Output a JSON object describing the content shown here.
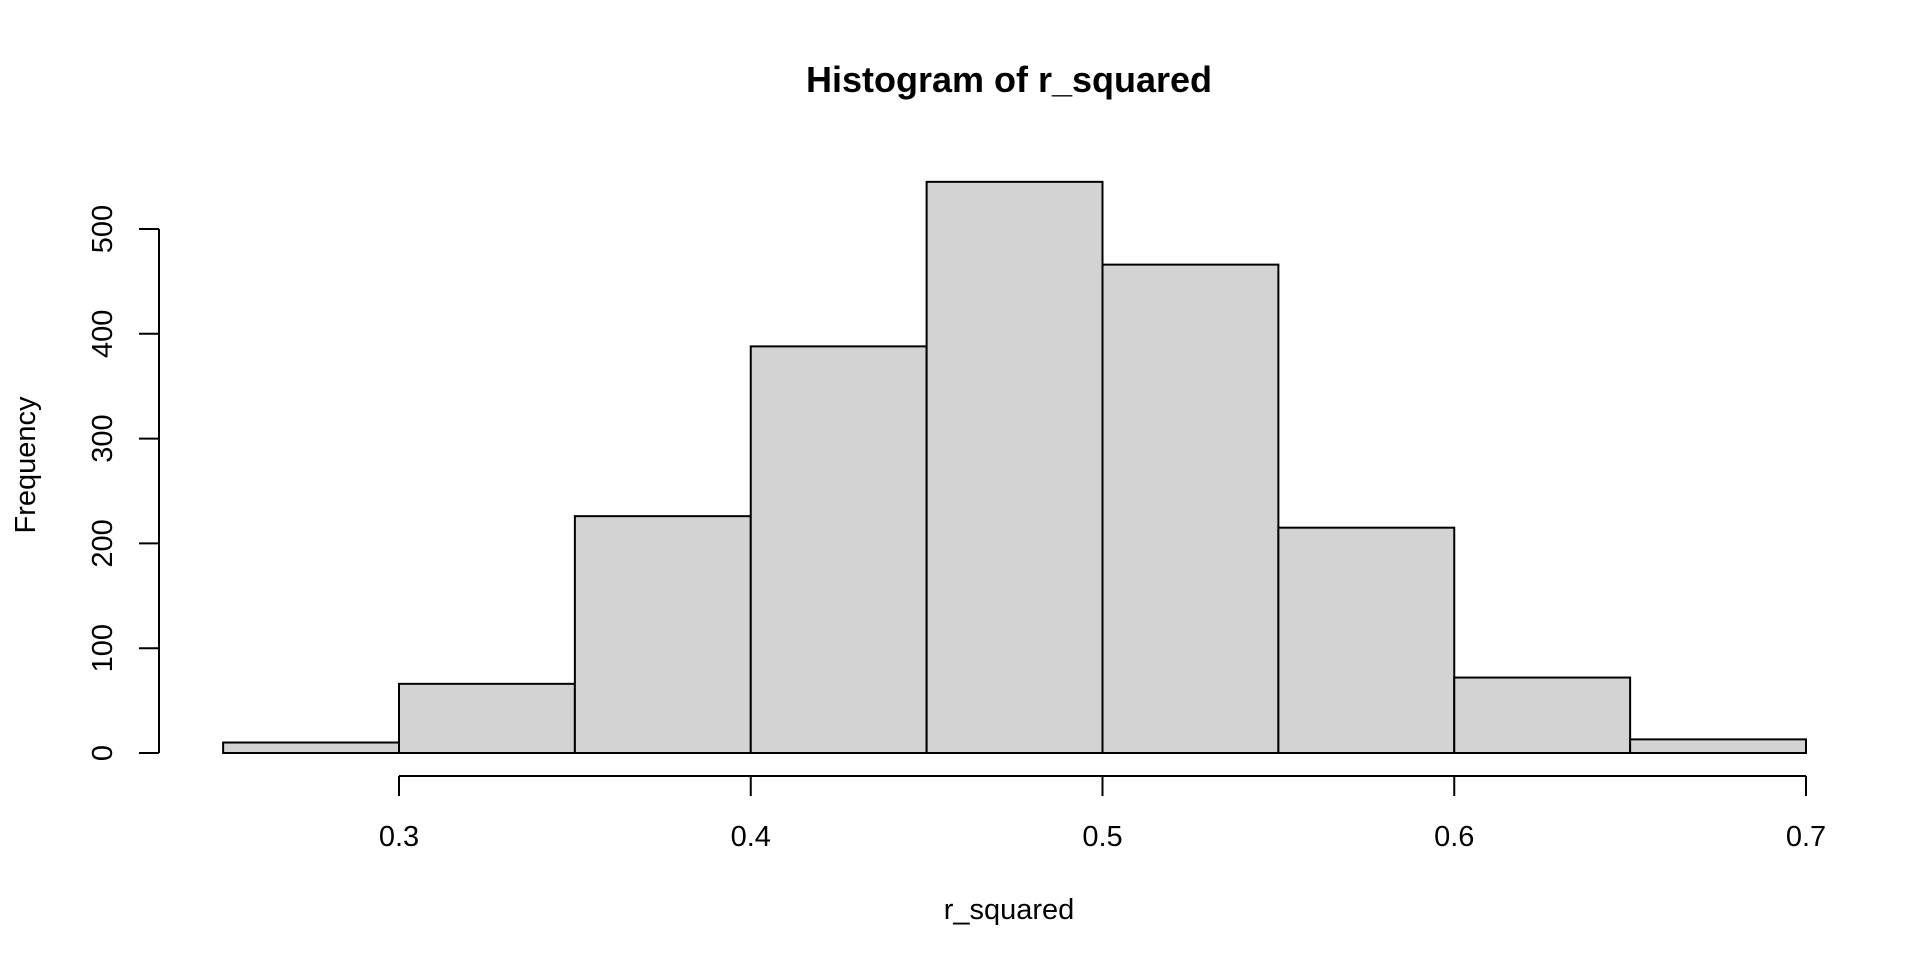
{
  "chart_data": {
    "type": "bar",
    "title": "Histogram of r_squared",
    "xlabel": "r_squared",
    "ylabel": "Frequency",
    "bins": [
      {
        "start": 0.25,
        "end": 0.3,
        "count": 10
      },
      {
        "start": 0.3,
        "end": 0.35,
        "count": 66
      },
      {
        "start": 0.35,
        "end": 0.4,
        "count": 226
      },
      {
        "start": 0.4,
        "end": 0.45,
        "count": 388
      },
      {
        "start": 0.45,
        "end": 0.5,
        "count": 545
      },
      {
        "start": 0.5,
        "end": 0.55,
        "count": 466
      },
      {
        "start": 0.55,
        "end": 0.6,
        "count": 215
      },
      {
        "start": 0.6,
        "end": 0.65,
        "count": 72
      },
      {
        "start": 0.65,
        "end": 0.7,
        "count": 13
      }
    ],
    "x_ticks": [
      0.3,
      0.4,
      0.5,
      0.6,
      0.7
    ],
    "x_tick_labels": [
      "0.3",
      "0.4",
      "0.5",
      "0.6",
      "0.7"
    ],
    "y_ticks": [
      0,
      100,
      200,
      300,
      400,
      500
    ],
    "y_tick_labels": [
      "0",
      "100",
      "200",
      "300",
      "400",
      "500"
    ],
    "bar_color": "#d3d3d3",
    "bar_border_color": "#000000",
    "grid": false,
    "legend": "none"
  }
}
